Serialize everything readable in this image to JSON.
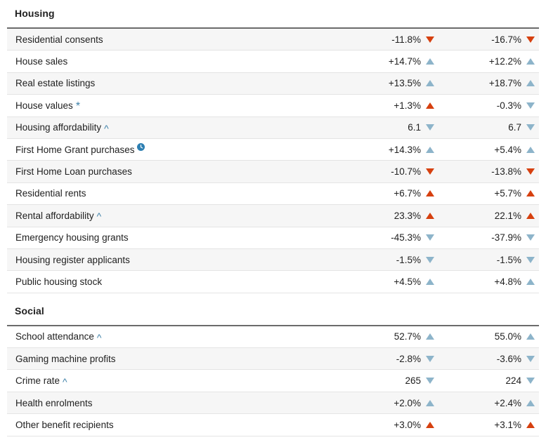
{
  "colors": {
    "text": "#212121",
    "arrow_red": "#d6400f",
    "arrow_blue": "#8db4ca",
    "marker_blue": "#3e81a8",
    "clock_icon_blue": "#2d7fb2",
    "row_shade": "#f6f6f6",
    "row_divider": "#e4e4e4",
    "section_border": "#6b6b6b"
  },
  "sections": [
    {
      "title": "Housing",
      "rows": [
        {
          "label": "Residential consents",
          "suffix": null,
          "suffix_glyph": "",
          "shaded": true,
          "values": [
            {
              "text": "-11.8%",
              "arrow": "down",
              "color": "red"
            },
            {
              "text": "-16.7%",
              "arrow": "down",
              "color": "red"
            }
          ]
        },
        {
          "label": "House sales",
          "suffix": null,
          "suffix_glyph": "",
          "shaded": false,
          "values": [
            {
              "text": "+14.7%",
              "arrow": "up",
              "color": "blue"
            },
            {
              "text": "+12.2%",
              "arrow": "up",
              "color": "blue"
            }
          ]
        },
        {
          "label": "Real estate listings",
          "suffix": null,
          "suffix_glyph": "",
          "shaded": true,
          "values": [
            {
              "text": "+13.5%",
              "arrow": "up",
              "color": "blue"
            },
            {
              "text": "+18.7%",
              "arrow": "up",
              "color": "blue"
            }
          ]
        },
        {
          "label": "House values",
          "suffix": "asterisk",
          "suffix_glyph": "*",
          "shaded": false,
          "values": [
            {
              "text": "+1.3%",
              "arrow": "up",
              "color": "red"
            },
            {
              "text": "-0.3%",
              "arrow": "down",
              "color": "blue"
            }
          ]
        },
        {
          "label": "Housing affordability",
          "suffix": "caret",
          "suffix_glyph": "^",
          "shaded": true,
          "values": [
            {
              "text": "6.1",
              "arrow": "down",
              "color": "blue"
            },
            {
              "text": "6.7",
              "arrow": "down",
              "color": "blue"
            }
          ]
        },
        {
          "label": "First Home Grant purchases",
          "suffix": "clock",
          "suffix_glyph": "",
          "shaded": false,
          "values": [
            {
              "text": "+14.3%",
              "arrow": "up",
              "color": "blue"
            },
            {
              "text": "+5.4%",
              "arrow": "up",
              "color": "blue"
            }
          ]
        },
        {
          "label": "First Home Loan purchases",
          "suffix": null,
          "suffix_glyph": "",
          "shaded": true,
          "values": [
            {
              "text": "-10.7%",
              "arrow": "down",
              "color": "red"
            },
            {
              "text": "-13.8%",
              "arrow": "down",
              "color": "red"
            }
          ]
        },
        {
          "label": "Residential rents",
          "suffix": null,
          "suffix_glyph": "",
          "shaded": false,
          "values": [
            {
              "text": "+6.7%",
              "arrow": "up",
              "color": "red"
            },
            {
              "text": "+5.7%",
              "arrow": "up",
              "color": "red"
            }
          ]
        },
        {
          "label": "Rental affordability",
          "suffix": "caret",
          "suffix_glyph": "^",
          "shaded": true,
          "values": [
            {
              "text": "23.3%",
              "arrow": "up",
              "color": "red"
            },
            {
              "text": "22.1%",
              "arrow": "up",
              "color": "red"
            }
          ]
        },
        {
          "label": "Emergency housing grants",
          "suffix": null,
          "suffix_glyph": "",
          "shaded": false,
          "values": [
            {
              "text": "-45.3%",
              "arrow": "down",
              "color": "blue"
            },
            {
              "text": "-37.9%",
              "arrow": "down",
              "color": "blue"
            }
          ]
        },
        {
          "label": "Housing register applicants",
          "suffix": null,
          "suffix_glyph": "",
          "shaded": true,
          "values": [
            {
              "text": "-1.5%",
              "arrow": "down",
              "color": "blue"
            },
            {
              "text": "-1.5%",
              "arrow": "down",
              "color": "blue"
            }
          ]
        },
        {
          "label": "Public housing stock",
          "suffix": null,
          "suffix_glyph": "",
          "shaded": false,
          "values": [
            {
              "text": "+4.5%",
              "arrow": "up",
              "color": "blue"
            },
            {
              "text": "+4.8%",
              "arrow": "up",
              "color": "blue"
            }
          ]
        }
      ]
    },
    {
      "title": "Social",
      "rows": [
        {
          "label": "School attendance",
          "suffix": "caret",
          "suffix_glyph": "^",
          "shaded": false,
          "values": [
            {
              "text": "52.7%",
              "arrow": "up",
              "color": "blue"
            },
            {
              "text": "55.0%",
              "arrow": "up",
              "color": "blue"
            }
          ]
        },
        {
          "label": "Gaming machine profits",
          "suffix": null,
          "suffix_glyph": "",
          "shaded": true,
          "values": [
            {
              "text": "-2.8%",
              "arrow": "down",
              "color": "blue"
            },
            {
              "text": "-3.6%",
              "arrow": "down",
              "color": "blue"
            }
          ]
        },
        {
          "label": "Crime rate",
          "suffix": "caret",
          "suffix_glyph": "^",
          "shaded": false,
          "values": [
            {
              "text": "265",
              "arrow": "down",
              "color": "blue"
            },
            {
              "text": "224",
              "arrow": "down",
              "color": "blue"
            }
          ]
        },
        {
          "label": "Health enrolments",
          "suffix": null,
          "suffix_glyph": "",
          "shaded": true,
          "values": [
            {
              "text": "+2.0%",
              "arrow": "up",
              "color": "blue"
            },
            {
              "text": "+2.4%",
              "arrow": "up",
              "color": "blue"
            }
          ]
        },
        {
          "label": "Other benefit recipients",
          "suffix": null,
          "suffix_glyph": "",
          "shaded": false,
          "values": [
            {
              "text": "+3.0%",
              "arrow": "up",
              "color": "red"
            },
            {
              "text": "+3.1%",
              "arrow": "up",
              "color": "red"
            }
          ]
        }
      ]
    }
  ]
}
